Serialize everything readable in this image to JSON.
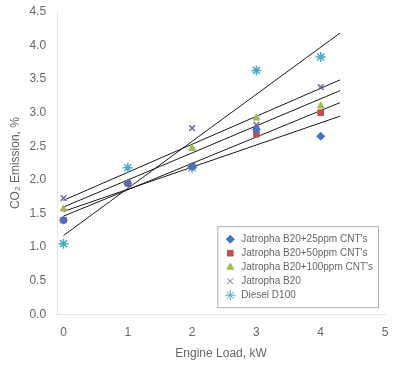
{
  "chart_data": {
    "type": "scatter",
    "xlabel": "Engine Load, kW",
    "ylabel": "CO₂ Emission, %",
    "xlim": [
      -0.1,
      5
    ],
    "ylim": [
      0,
      4.5
    ],
    "xticks": [
      0,
      1,
      2,
      3,
      4,
      5
    ],
    "yticks": [
      {
        "value": 0,
        "label": "0.0"
      },
      0.5,
      {
        "value": 1,
        "label": "1.0"
      },
      1.5,
      {
        "value": 2,
        "label": "2.0"
      },
      2.5,
      {
        "value": 3,
        "label": "3.0"
      },
      3.5,
      {
        "value": 4,
        "label": "4.0"
      },
      4.5
    ],
    "grid": false,
    "legend": "lower right",
    "series": [
      {
        "name": "Jatropha B20+25ppm CNT's",
        "color": "#4472c4",
        "marker": "diamond",
        "x": [
          0,
          1,
          2,
          3,
          4
        ],
        "values": [
          1.4,
          1.95,
          2.2,
          2.75,
          2.65
        ],
        "trendline": {
          "x": [
            0,
            4.3
          ],
          "values": [
            1.53,
            2.949
          ],
          "color": "#1a1a1a"
        }
      },
      {
        "name": "Jatropha B20+50ppm CNT's",
        "color": "#c0504d",
        "marker": "square",
        "x": [
          0,
          1,
          2,
          3,
          4
        ],
        "values": [
          1.4,
          1.95,
          2.2,
          2.68,
          3.0
        ],
        "trendline": {
          "x": [
            0,
            4.3
          ],
          "values": [
            1.46,
            3.1499
          ],
          "color": "#1a1a1a"
        }
      },
      {
        "name": "Jatropha B20+100ppm CNT's",
        "color": "#9bbb59",
        "marker": "triangle",
        "x": [
          0,
          1,
          2,
          3,
          4
        ],
        "values": [
          1.57,
          1.95,
          2.47,
          2.92,
          3.1
        ],
        "trendline": {
          "x": [
            0,
            4.3
          ],
          "values": [
            1.596,
            3.3289
          ],
          "color": "#1a1a1a"
        }
      },
      {
        "name": "Jatropha B20",
        "color": "#8064a2",
        "marker": "x",
        "x": [
          0,
          1,
          2,
          3,
          4
        ],
        "values": [
          1.73,
          1.95,
          2.77,
          2.82,
          3.38
        ],
        "trendline": {
          "x": [
            0,
            4.3
          ],
          "values": [
            1.696,
            3.4891
          ],
          "color": "#1a1a1a"
        }
      },
      {
        "name": "Diesel D100",
        "color": "#4bacc6",
        "marker": "star",
        "x": [
          0,
          1,
          2,
          3,
          4
        ],
        "values": [
          1.05,
          2.18,
          2.18,
          3.63,
          3.83
        ],
        "trendline": {
          "x": [
            0,
            4.3
          ],
          "values": [
            1.172,
            4.1863
          ],
          "color": "#1a1a1a"
        }
      }
    ]
  }
}
